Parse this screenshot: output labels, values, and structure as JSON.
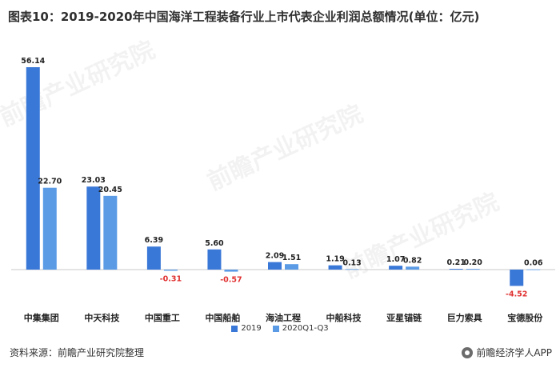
{
  "title": "图表10：2019-2020年中国海洋工程装备行业上市代表企业利润总额情况(单位：亿元)",
  "source": "资料来源：前瞻产业研究院整理",
  "brand": "前瞻经济学人APP",
  "watermark_text": "前瞻产业研究院",
  "colors": {
    "series_2019": "#3a78d8",
    "series_2020": "#5b9be6",
    "negative_label": "#e03030",
    "axis": "#c8c8c8"
  },
  "chart_data": {
    "type": "bar",
    "categories": [
      "中集集团",
      "中天科技",
      "中国重工",
      "中国船舶",
      "海油工程",
      "中船科技",
      "亚星锚链",
      "巨力索具",
      "宝德股份"
    ],
    "series": [
      {
        "name": "2019",
        "values": [
          56.14,
          23.03,
          6.39,
          5.6,
          2.09,
          1.19,
          1.07,
          0.21,
          -4.52
        ]
      },
      {
        "name": "2020Q1-Q3",
        "values": [
          22.7,
          20.45,
          -0.31,
          -0.57,
          1.51,
          0.13,
          0.82,
          0.2,
          0.06
        ]
      }
    ],
    "value_labels": [
      [
        "56.14",
        "23.03",
        "6.39",
        "5.60",
        "2.09",
        "1.19",
        "1.07",
        "0.21",
        "-4.52"
      ],
      [
        "22.70",
        "20.45",
        "-0.31",
        "-0.57",
        "1.51",
        "0.13",
        "0.82",
        "0.20",
        "0.06"
      ]
    ],
    "ylim": [
      -8,
      60
    ],
    "grid": false,
    "legend_position": "bottom"
  }
}
